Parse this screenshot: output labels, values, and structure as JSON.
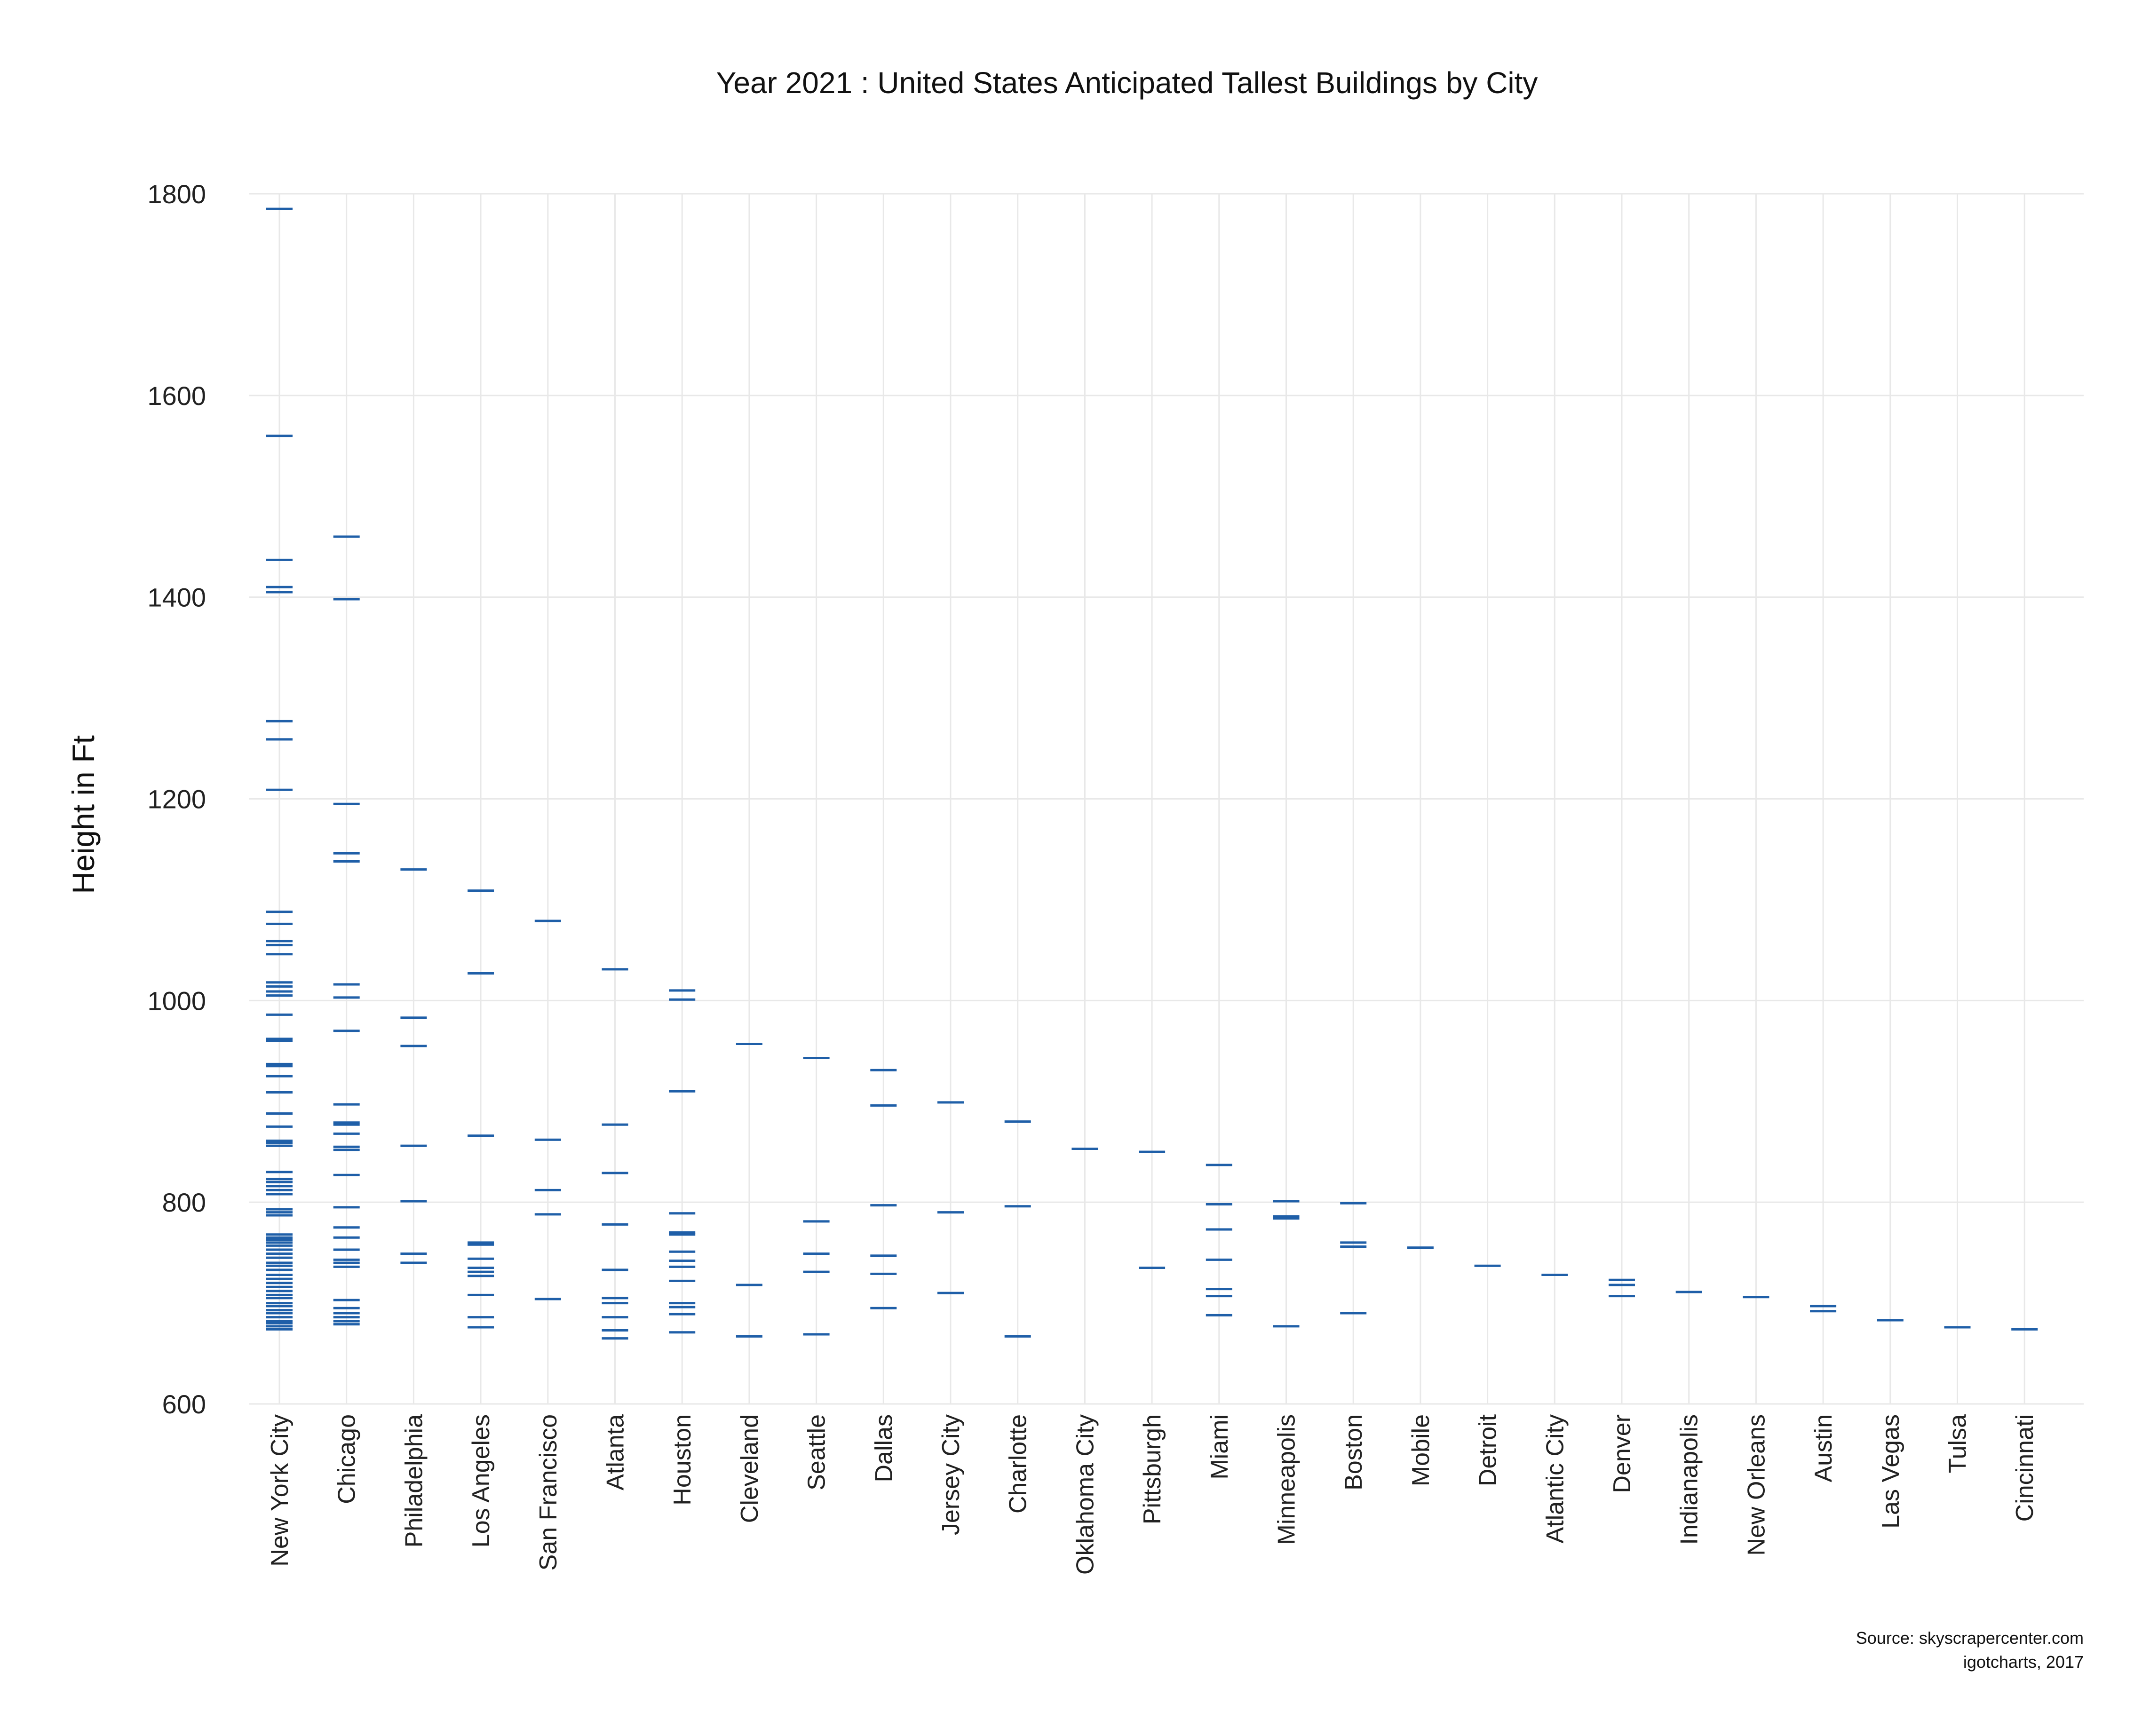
{
  "chart_data": {
    "type": "scatter",
    "title": "Year 2021 : United States Anticipated Tallest Buildings by City",
    "xlabel": "",
    "ylabel": "Height in Ft",
    "ylim": [
      600,
      1800
    ],
    "yticks": [
      600,
      800,
      1000,
      1200,
      1400,
      1600,
      1800
    ],
    "grid": true,
    "legend": "none",
    "marker": "horizontal-dash",
    "color": "#1f5fa8",
    "source_lines": [
      "Source: skyscrapercenter.com",
      "igotcharts, 2017"
    ],
    "categories": [
      "New York City",
      "Chicago",
      "Philadelphia",
      "Los Angeles",
      "San Francisco",
      "Atlanta",
      "Houston",
      "Cleveland",
      "Seattle",
      "Dallas",
      "Jersey City",
      "Charlotte",
      "Oklahoma City",
      "Pittsburgh",
      "Miami",
      "Minneapolis",
      "Boston",
      "Mobile",
      "Detroit",
      "Atlantic City",
      "Denver",
      "Indianapolis",
      "New Orleans",
      "Austin",
      "Las Vegas",
      "Tulsa",
      "Cincinnati"
    ],
    "values": [
      [
        1785,
        1560,
        1437,
        1410,
        1405,
        1277,
        1259,
        1209,
        1088,
        1076,
        1059,
        1055,
        1046,
        1018,
        1014,
        1009,
        1005,
        986,
        962,
        960,
        937,
        935,
        925,
        909,
        888,
        875,
        861,
        859,
        856,
        830,
        823,
        820,
        816,
        812,
        808,
        793,
        790,
        787,
        768,
        765,
        763,
        760,
        757,
        753,
        749,
        745,
        740,
        737,
        733,
        728,
        724,
        720,
        716,
        712,
        708,
        705,
        700,
        697,
        693,
        690,
        686,
        682,
        680,
        677,
        674
      ],
      [
        1460,
        1398,
        1195,
        1146,
        1138,
        1016,
        1003,
        970,
        897,
        879,
        877,
        868,
        855,
        852,
        827,
        795,
        775,
        765,
        753,
        743,
        740,
        736,
        703,
        695,
        690,
        686,
        682,
        679
      ],
      [
        1130,
        983,
        955,
        856,
        801,
        749,
        740
      ],
      [
        1109,
        1027,
        866,
        760,
        758,
        744,
        735,
        731,
        727,
        708,
        686,
        676
      ],
      [
        1079,
        862,
        812,
        788,
        704
      ],
      [
        1031,
        877,
        829,
        778,
        733,
        705,
        700,
        686,
        673,
        665
      ],
      [
        1010,
        1001,
        910,
        789,
        770,
        768,
        751,
        742,
        736,
        722,
        700,
        696,
        689,
        671
      ],
      [
        957,
        718,
        667
      ],
      [
        943,
        781,
        749,
        731,
        669
      ],
      [
        931,
        896,
        797,
        747,
        729,
        695
      ],
      [
        899,
        790,
        710
      ],
      [
        880,
        796,
        667
      ],
      [
        853
      ],
      [
        850,
        735
      ],
      [
        837,
        798,
        773,
        743,
        714,
        707,
        688
      ],
      [
        801,
        786,
        784,
        677
      ],
      [
        799,
        760,
        756,
        690
      ],
      [
        755
      ],
      [
        737
      ],
      [
        728
      ],
      [
        723,
        718,
        707
      ],
      [
        711
      ],
      [
        706
      ],
      [
        697,
        692
      ],
      [
        683
      ],
      [
        676
      ],
      [
        674
      ]
    ]
  }
}
